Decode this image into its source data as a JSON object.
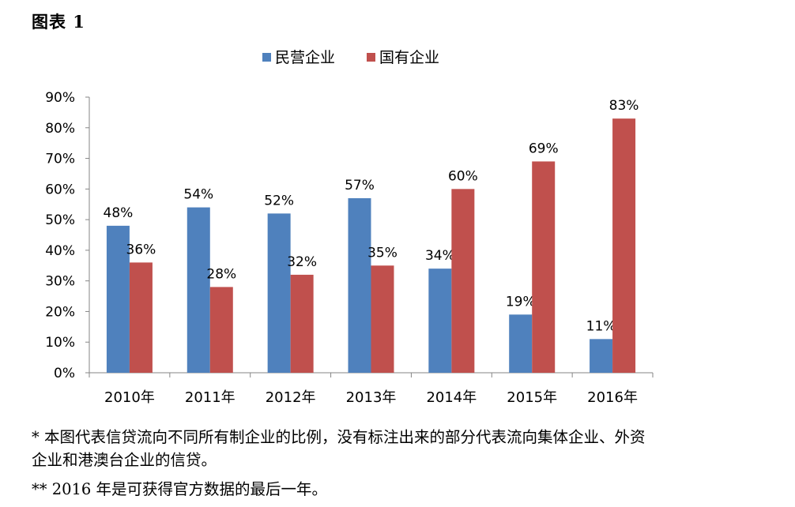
{
  "figure_label": "图表 1",
  "chart_data": {
    "type": "bar",
    "title": "",
    "xlabel": "",
    "ylabel": "",
    "categories": [
      "2010年",
      "2011年",
      "2012年",
      "2013年",
      "2014年",
      "2015年",
      "2016年"
    ],
    "series": [
      {
        "name": "民营企业",
        "color": "#4f81bd",
        "values": [
          48,
          54,
          52,
          57,
          34,
          19,
          11
        ]
      },
      {
        "name": "国有企业",
        "color": "#c0504d",
        "values": [
          36,
          28,
          32,
          35,
          60,
          69,
          83
        ]
      }
    ],
    "value_suffix": "%",
    "ylim": [
      0,
      90
    ],
    "yticks": [
      "0%",
      "10%",
      "20%",
      "30%",
      "40%",
      "50%",
      "60%",
      "70%",
      "80%",
      "90%"
    ],
    "ytick_values": [
      0,
      10,
      20,
      30,
      40,
      50,
      60,
      70,
      80,
      90
    ],
    "grid": false,
    "legend_position": "top-center"
  },
  "notes": {
    "line1": "* 本图代表信贷流向不同所有制企业的比例，没有标注出来的部分代表流向集体企业、外资",
    "line2": "企业和港澳台企业的信贷。",
    "line3": "** 2016 年是可获得官方数据的最后一年。"
  }
}
